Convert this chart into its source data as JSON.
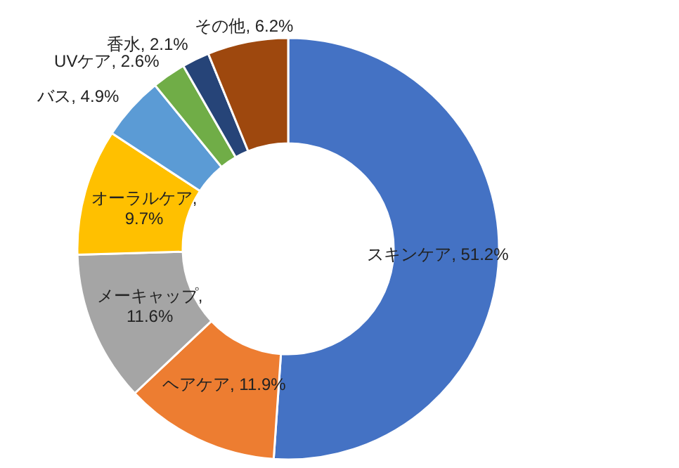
{
  "chart_data": {
    "type": "donut",
    "categories": [
      "スキンケア",
      "ヘアケア",
      "メーキャップ",
      "オーラルケア",
      "バス",
      "UVケア",
      "香水",
      "その他"
    ],
    "values": [
      51.2,
      11.9,
      11.6,
      9.7,
      4.9,
      2.6,
      2.1,
      6.2
    ],
    "colors": [
      "#4472c4",
      "#ed7d31",
      "#a5a5a5",
      "#ffc000",
      "#5b9bd5",
      "#70ad47",
      "#264478",
      "#9e480e"
    ],
    "value_labels": [
      ", 51.2%",
      ", 11.9%",
      ",\n11.6%",
      ",\n9.7%",
      ", 4.9%",
      ", 2.6%",
      ", 2.1%",
      ", 6.2%"
    ]
  }
}
